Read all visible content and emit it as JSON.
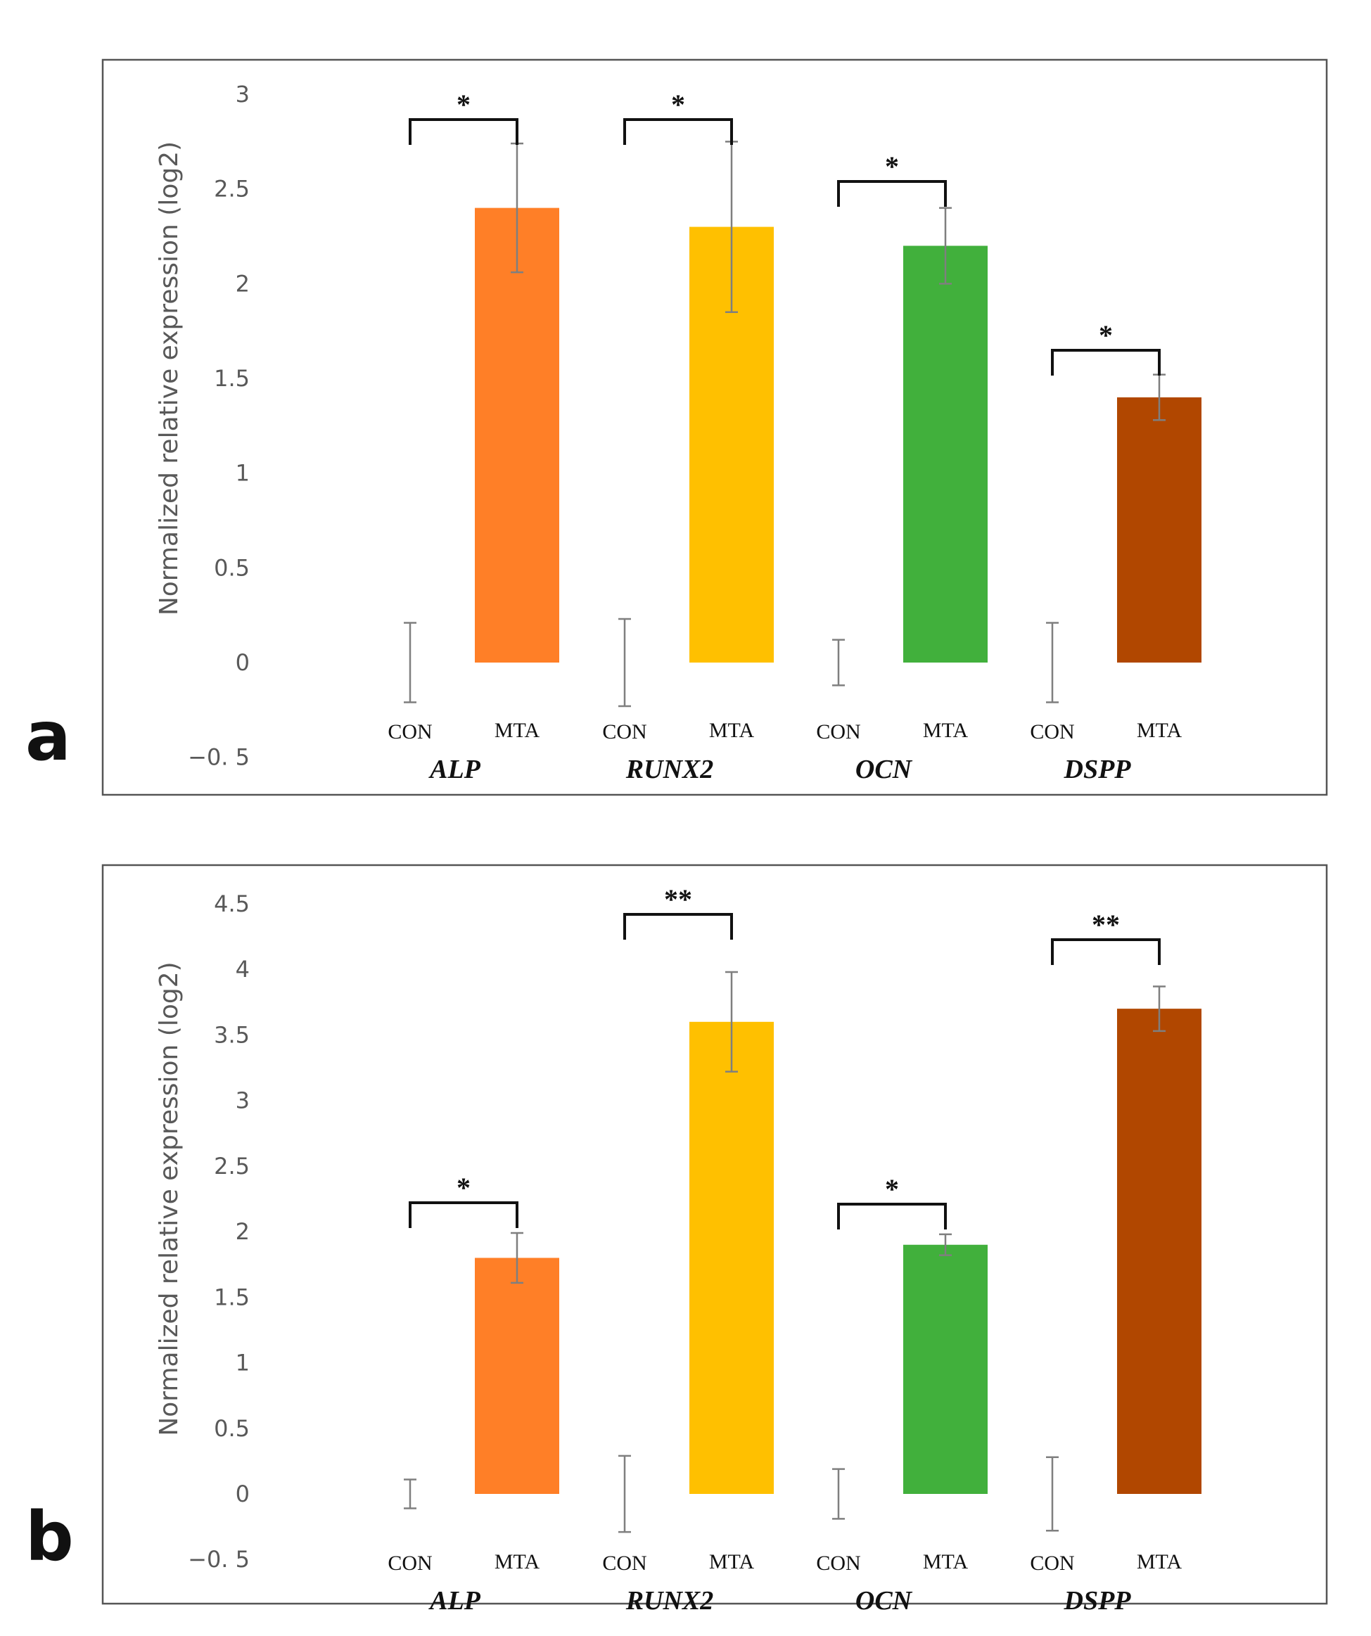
{
  "chart_data": [
    {
      "type": "bar",
      "panel_label": "a",
      "ylabel": "Normalized relative expression (log2)",
      "ylim": [
        -0.5,
        3
      ],
      "yticks": [
        "-0.5",
        "0",
        "0.5",
        "1",
        "1.5",
        "2",
        "2.5",
        "3"
      ],
      "ytick_labels": [
        "−0. 5",
        "0",
        "0.5",
        "1",
        "1.5",
        "2",
        "2.5",
        "3"
      ],
      "condition_labels": [
        "CON",
        "MTA"
      ],
      "groups": [
        {
          "gene": "ALP",
          "color": "#FF7F27",
          "con": {
            "value": 0,
            "error": 0.21
          },
          "mta": {
            "value": 2.4,
            "error": 0.34
          },
          "significance": "*"
        },
        {
          "gene": "RUNX2",
          "color": "#FFC000",
          "con": {
            "value": 0,
            "error": 0.23
          },
          "mta": {
            "value": 2.3,
            "error": 0.45
          },
          "significance": "*"
        },
        {
          "gene": "OCN",
          "color": "#41B03C",
          "con": {
            "value": 0,
            "error": 0.12
          },
          "mta": {
            "value": 2.2,
            "error": 0.2
          },
          "significance": "*"
        },
        {
          "gene": "DSPP",
          "color": "#B14700",
          "con": {
            "value": 0,
            "error": 0.21
          },
          "mta": {
            "value": 1.4,
            "error": 0.12
          },
          "significance": "*"
        }
      ]
    },
    {
      "type": "bar",
      "panel_label": "b",
      "ylabel": "Normalized relative expression (log2)",
      "ylim": [
        -0.5,
        4.5
      ],
      "yticks": [
        "-0.5",
        "0",
        "0.5",
        "1",
        "1.5",
        "2",
        "2.5",
        "3",
        "3.5",
        "4",
        "4.5"
      ],
      "ytick_labels": [
        "−0. 5",
        "0",
        "0.5",
        "1",
        "1.5",
        "2",
        "2.5",
        "3",
        "3.5",
        "4",
        "4.5"
      ],
      "condition_labels": [
        "CON",
        "MTA"
      ],
      "groups": [
        {
          "gene": "ALP",
          "color": "#FF7F27",
          "con": {
            "value": 0,
            "error": 0.11
          },
          "mta": {
            "value": 1.8,
            "error": 0.19
          },
          "significance": "*"
        },
        {
          "gene": "RUNX2",
          "color": "#FFC000",
          "con": {
            "value": 0,
            "error": 0.29
          },
          "mta": {
            "value": 3.6,
            "error": 0.38
          },
          "significance": "**"
        },
        {
          "gene": "OCN",
          "color": "#41B03C",
          "con": {
            "value": 0,
            "error": 0.19
          },
          "mta": {
            "value": 1.9,
            "error": 0.08
          },
          "significance": "*"
        },
        {
          "gene": "DSPP",
          "color": "#B14700",
          "con": {
            "value": 0,
            "error": 0.28
          },
          "mta": {
            "value": 3.7,
            "error": 0.17
          },
          "significance": "**"
        }
      ]
    }
  ]
}
